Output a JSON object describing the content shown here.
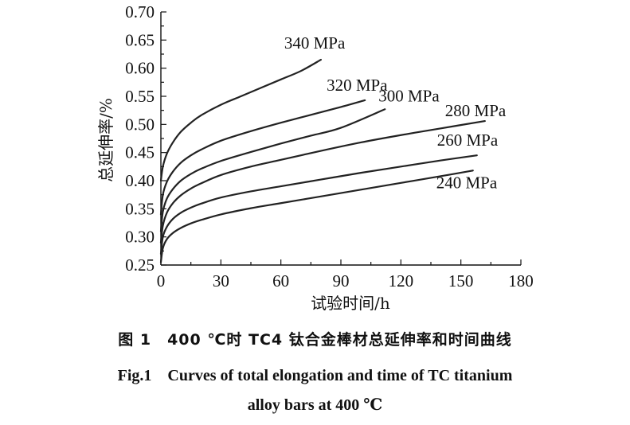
{
  "chart_data": {
    "type": "line",
    "xlabel": "试验时间/h",
    "ylabel": "总延伸率/%",
    "xlim": [
      0,
      180
    ],
    "ylim": [
      0.25,
      0.7
    ],
    "xticks": [
      "0",
      "30",
      "60",
      "90",
      "120",
      "150",
      "180"
    ],
    "yticks": [
      "0.25",
      "0.30",
      "0.35",
      "0.40",
      "0.45",
      "0.50",
      "0.55",
      "0.60",
      "0.65",
      "0.70"
    ],
    "grid": false,
    "series": [
      {
        "name": "340 MPa",
        "x": [
          0,
          1,
          3,
          6,
          10,
          15,
          20,
          30,
          40,
          50,
          60,
          70,
          80
        ],
        "y": [
          0.4,
          0.425,
          0.448,
          0.468,
          0.487,
          0.503,
          0.516,
          0.535,
          0.55,
          0.565,
          0.58,
          0.595,
          0.615
        ]
      },
      {
        "name": "320 MPa",
        "x": [
          0,
          1,
          3,
          6,
          10,
          15,
          20,
          30,
          45,
          60,
          75,
          90,
          102
        ],
        "y": [
          0.34,
          0.375,
          0.398,
          0.416,
          0.432,
          0.445,
          0.455,
          0.471,
          0.488,
          0.503,
          0.517,
          0.531,
          0.543
        ]
      },
      {
        "name": "300 MPa",
        "x": [
          0,
          1,
          3,
          6,
          10,
          15,
          20,
          30,
          45,
          60,
          75,
          90,
          112
        ],
        "y": [
          0.31,
          0.345,
          0.368,
          0.385,
          0.4,
          0.412,
          0.421,
          0.435,
          0.451,
          0.466,
          0.48,
          0.494,
          0.527
        ]
      },
      {
        "name": "280 MPa",
        "x": [
          0,
          1,
          3,
          6,
          10,
          15,
          20,
          30,
          45,
          60,
          80,
          100,
          120,
          140,
          162
        ],
        "y": [
          0.29,
          0.32,
          0.343,
          0.36,
          0.374,
          0.386,
          0.395,
          0.41,
          0.425,
          0.437,
          0.453,
          0.468,
          0.481,
          0.493,
          0.506
        ]
      },
      {
        "name": "260 MPa",
        "x": [
          0,
          1,
          3,
          6,
          10,
          15,
          20,
          30,
          45,
          60,
          80,
          100,
          120,
          140,
          158
        ],
        "y": [
          0.27,
          0.3,
          0.318,
          0.332,
          0.343,
          0.352,
          0.359,
          0.37,
          0.381,
          0.39,
          0.402,
          0.414,
          0.425,
          0.436,
          0.445
        ]
      },
      {
        "name": "240 MPa",
        "x": [
          0,
          1,
          3,
          6,
          10,
          15,
          20,
          30,
          45,
          60,
          80,
          100,
          120,
          140,
          156
        ],
        "y": [
          0.255,
          0.28,
          0.296,
          0.307,
          0.316,
          0.324,
          0.33,
          0.34,
          0.351,
          0.36,
          0.372,
          0.384,
          0.396,
          0.408,
          0.418
        ]
      }
    ]
  },
  "caption": {
    "cn": "图 1　400 ℃时 TC4 钛合金棒材总延伸率和时间曲线",
    "en_line1": "Fig.1　Curves of total elongation and time of TC titanium",
    "en_line2": "alloy bars at 400 ℃"
  }
}
